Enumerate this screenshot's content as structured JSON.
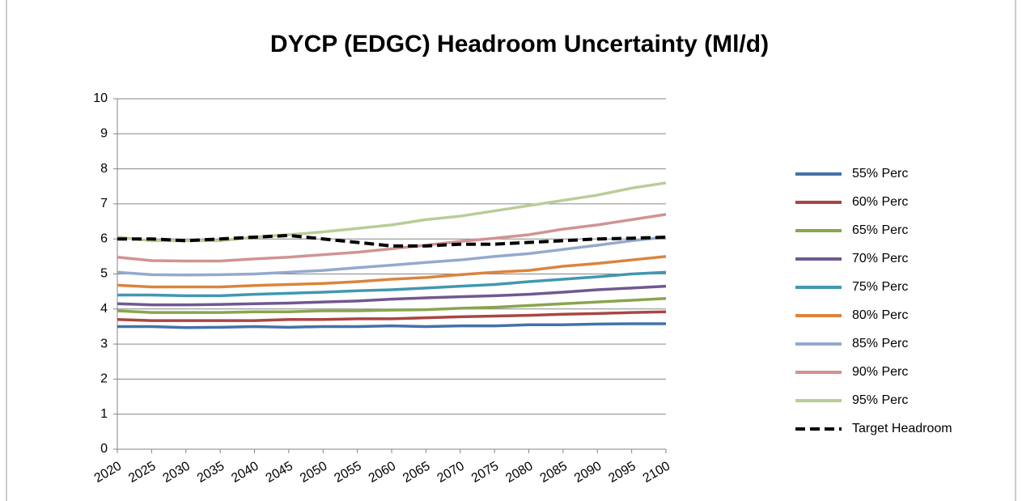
{
  "chart_data": {
    "type": "line",
    "title": "DYCP (EDGC) Headroom Uncertainty (Ml/d)",
    "x": [
      2020,
      2025,
      2030,
      2035,
      2040,
      2045,
      2050,
      2055,
      2060,
      2065,
      2070,
      2075,
      2080,
      2085,
      2090,
      2095,
      2100
    ],
    "xlim": [
      2020,
      2100
    ],
    "xticks": [
      2020,
      2025,
      2030,
      2035,
      2040,
      2045,
      2050,
      2055,
      2060,
      2065,
      2070,
      2075,
      2080,
      2085,
      2090,
      2095,
      2100
    ],
    "ylim": [
      0,
      10
    ],
    "yticks": [
      0,
      1,
      2,
      3,
      4,
      5,
      6,
      7,
      8,
      9,
      10
    ],
    "grid": true,
    "legend": "right",
    "series": [
      {
        "name": "55% Perc",
        "color": "#4472a8",
        "values": [
          3.5,
          3.5,
          3.47,
          3.48,
          3.5,
          3.48,
          3.5,
          3.5,
          3.52,
          3.5,
          3.52,
          3.52,
          3.55,
          3.55,
          3.57,
          3.58,
          3.58
        ]
      },
      {
        "name": "60% Perc",
        "color": "#aa4643",
        "values": [
          3.7,
          3.67,
          3.67,
          3.67,
          3.67,
          3.7,
          3.7,
          3.72,
          3.72,
          3.75,
          3.78,
          3.8,
          3.82,
          3.85,
          3.87,
          3.9,
          3.92
        ]
      },
      {
        "name": "65% Perc",
        "color": "#89a54e",
        "values": [
          3.95,
          3.9,
          3.9,
          3.9,
          3.92,
          3.92,
          3.95,
          3.95,
          3.97,
          3.98,
          4.02,
          4.05,
          4.1,
          4.15,
          4.2,
          4.25,
          4.3
        ]
      },
      {
        "name": "70% Perc",
        "color": "#71588f",
        "values": [
          4.15,
          4.12,
          4.12,
          4.13,
          4.15,
          4.17,
          4.2,
          4.23,
          4.28,
          4.32,
          4.35,
          4.38,
          4.42,
          4.48,
          4.55,
          4.6,
          4.65
        ]
      },
      {
        "name": "75% Perc",
        "color": "#4198af",
        "values": [
          4.4,
          4.4,
          4.38,
          4.38,
          4.42,
          4.45,
          4.48,
          4.52,
          4.55,
          4.6,
          4.65,
          4.7,
          4.78,
          4.85,
          4.92,
          5.0,
          5.05
        ]
      },
      {
        "name": "80% Perc",
        "color": "#db843d",
        "values": [
          4.68,
          4.63,
          4.63,
          4.63,
          4.67,
          4.7,
          4.73,
          4.78,
          4.85,
          4.9,
          4.98,
          5.05,
          5.1,
          5.22,
          5.3,
          5.4,
          5.5
        ]
      },
      {
        "name": "85% Perc",
        "color": "#93a9cf",
        "values": [
          5.05,
          4.98,
          4.97,
          4.98,
          5.0,
          5.05,
          5.1,
          5.18,
          5.25,
          5.33,
          5.4,
          5.5,
          5.58,
          5.7,
          5.82,
          5.95,
          6.05
        ]
      },
      {
        "name": "90% Perc",
        "color": "#d19392",
        "values": [
          5.48,
          5.38,
          5.37,
          5.37,
          5.43,
          5.48,
          5.55,
          5.62,
          5.72,
          5.82,
          5.93,
          6.02,
          6.12,
          6.28,
          6.4,
          6.55,
          6.7
        ]
      },
      {
        "name": "95% Perc",
        "color": "#b9cd96",
        "values": [
          6.05,
          5.95,
          5.95,
          5.95,
          6.05,
          6.12,
          6.2,
          6.3,
          6.4,
          6.55,
          6.65,
          6.8,
          6.95,
          7.1,
          7.25,
          7.45,
          7.6
        ]
      },
      {
        "name": "Target Headroom",
        "color": "#000000",
        "dashed": true,
        "values": [
          6.0,
          6.0,
          5.95,
          6.0,
          6.05,
          6.1,
          6.0,
          5.9,
          5.8,
          5.8,
          5.85,
          5.85,
          5.9,
          5.95,
          6.0,
          6.02,
          6.05
        ]
      }
    ]
  }
}
